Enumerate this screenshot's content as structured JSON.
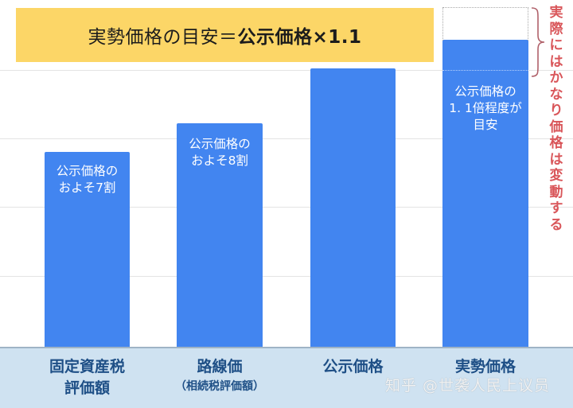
{
  "formula": {
    "prefix": "実勢価格の目安＝",
    "bold_part": "公示価格×1.1"
  },
  "note_vertical": "実際にはかなり価格は変動する",
  "bars": [
    {
      "category_line1": "固定資産税",
      "category_line2": "評価額",
      "label_line1": "公示価格の",
      "label_line2": "およそ7割",
      "label_line3": ""
    },
    {
      "category_line1": "路線価",
      "category_line2": "（相続税評価額）",
      "label_line1": "公示価格の",
      "label_line2": "およそ8割",
      "label_line3": ""
    },
    {
      "category_line1": "公示価格",
      "category_line2": "",
      "label_line1": "",
      "label_line2": "",
      "label_line3": ""
    },
    {
      "category_line1": "実勢価格",
      "category_line2": "",
      "label_line1": "公示価格の",
      "label_line2": "1. 1倍程度が",
      "label_line3": "目安"
    }
  ],
  "watermark": "知乎 @世袭人民上议员",
  "colors": {
    "bar": "#4285f0",
    "formula_bg": "#fcd667",
    "note": "#d9565a",
    "axis_band": "#cfe2f1",
    "category_text": "#1e4f86"
  },
  "chart_data": {
    "type": "bar",
    "title": "実勢価格の目安＝公示価格×1.1",
    "categories": [
      "固定資産税評価額",
      "路線価（相続税評価額）",
      "公示価格",
      "実勢価格"
    ],
    "values": [
      70,
      80,
      100,
      110
    ],
    "unit": "% of 公示価格 (relative)",
    "annotations": [
      "公示価格のおよそ7割",
      "公示価格のおよそ8割",
      "公示価格の1.1倍程度が目安",
      "実際にはかなり価格は変動する"
    ],
    "xlabel": "",
    "ylabel": "",
    "grid": true,
    "legend": false,
    "ylim": [
      0,
      120
    ]
  }
}
